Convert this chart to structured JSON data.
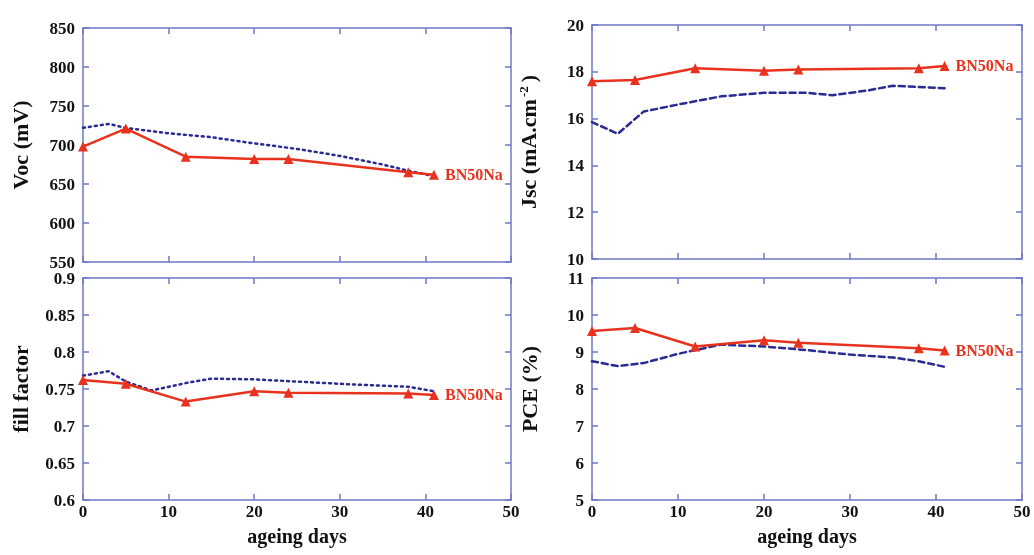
{
  "chart_data": [
    {
      "type": "line",
      "ylabel": "Voc (mV)",
      "xlim": [
        0,
        50
      ],
      "xticks": [
        0,
        10,
        20,
        30,
        40,
        50
      ],
      "ylim": [
        550,
        850
      ],
      "yticks": [
        550,
        600,
        650,
        700,
        750,
        800,
        850
      ],
      "tick_labels": "y",
      "grid": false,
      "legend": false,
      "series": [
        {
          "name": "BN50Na",
          "color": "#e8321e",
          "marker": "triangle",
          "line_style": "solid",
          "x": [
            0,
            5,
            12,
            20,
            24,
            38,
            41
          ],
          "values": [
            698,
            721,
            685,
            682,
            682,
            665,
            662
          ]
        },
        {
          "color": "#2a2a90",
          "marker": "none",
          "line_style": "dotted",
          "x": [
            0,
            3,
            5,
            10,
            15,
            20,
            25,
            30,
            35,
            38,
            41
          ],
          "values": [
            722,
            727,
            722,
            715,
            710,
            702,
            695,
            686,
            675,
            667,
            660
          ]
        }
      ]
    },
    {
      "type": "line",
      "ylabel": "Jsc (mA.cm$^{-2}$)",
      "xlim": [
        0,
        50
      ],
      "xticks": [
        0,
        10,
        20,
        30,
        40,
        50
      ],
      "ylim": [
        10,
        20
      ],
      "yticks": [
        10,
        12,
        14,
        16,
        18,
        20
      ],
      "tick_labels": "y",
      "grid": false,
      "legend": false,
      "series": [
        {
          "name": "BN50Na",
          "color": "#e8321e",
          "marker": "triangle",
          "line_style": "solid",
          "x": [
            0,
            5,
            12,
            20,
            24,
            38,
            41
          ],
          "values": [
            17.6,
            17.65,
            18.15,
            18.05,
            18.1,
            18.15,
            18.25
          ]
        },
        {
          "color": "#2a2a90",
          "marker": "none",
          "line_style": "dashed",
          "x": [
            0,
            3,
            6,
            10,
            15,
            20,
            25,
            28,
            32,
            35,
            38,
            41
          ],
          "values": [
            15.85,
            15.35,
            16.3,
            16.6,
            16.95,
            17.1,
            17.1,
            17.0,
            17.2,
            17.4,
            17.35,
            17.3
          ]
        }
      ]
    },
    {
      "type": "line",
      "xlabel": "ageing days",
      "ylabel": "fill factor",
      "xlim": [
        0,
        50
      ],
      "xticks": [
        0,
        10,
        20,
        30,
        40,
        50
      ],
      "ylim": [
        0.6,
        0.9
      ],
      "yticks": [
        0.6,
        0.65,
        0.7,
        0.75,
        0.8,
        0.85,
        0.9
      ],
      "grid": false,
      "legend": false,
      "series": [
        {
          "name": "BN50Na",
          "color": "#e8321e",
          "marker": "triangle",
          "line_style": "solid",
          "x": [
            0,
            5,
            12,
            20,
            24,
            38,
            41
          ],
          "values": [
            0.762,
            0.757,
            0.733,
            0.747,
            0.745,
            0.744,
            0.742
          ]
        },
        {
          "color": "#2a2a90",
          "marker": "none",
          "line_style": "dotted",
          "x": [
            0,
            3,
            5,
            8,
            12,
            15,
            20,
            30,
            38,
            41
          ],
          "values": [
            0.768,
            0.774,
            0.76,
            0.748,
            0.758,
            0.764,
            0.763,
            0.757,
            0.753,
            0.747
          ]
        }
      ]
    },
    {
      "type": "line",
      "xlabel": "ageing days",
      "ylabel": "PCE (%)",
      "xlim": [
        0,
        50
      ],
      "xticks": [
        0,
        10,
        20,
        30,
        40,
        50
      ],
      "ylim": [
        5,
        11
      ],
      "yticks": [
        5,
        6,
        7,
        8,
        9,
        10,
        11
      ],
      "grid": false,
      "legend": false,
      "series": [
        {
          "name": "BN50Na",
          "color": "#e8321e",
          "marker": "triangle",
          "line_style": "solid",
          "x": [
            0,
            5,
            12,
            20,
            24,
            38,
            41
          ],
          "values": [
            9.57,
            9.65,
            9.15,
            9.32,
            9.25,
            9.1,
            9.04
          ]
        },
        {
          "color": "#2a2a90",
          "marker": "none",
          "line_style": "dashed",
          "x": [
            0,
            3,
            6,
            10,
            15,
            20,
            25,
            30,
            35,
            38,
            41
          ],
          "values": [
            8.75,
            8.62,
            8.7,
            8.95,
            9.2,
            9.15,
            9.05,
            8.93,
            8.85,
            8.75,
            8.6
          ]
        }
      ]
    }
  ]
}
